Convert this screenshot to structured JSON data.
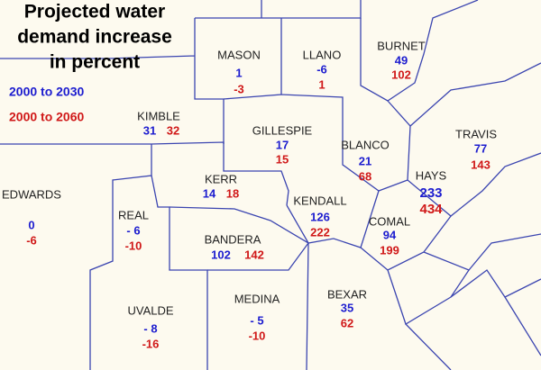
{
  "title": [
    "Projected water",
    "demand increase",
    "in percent"
  ],
  "legend": [
    {
      "label": "2000 to 2030",
      "color": "#1c1ccf"
    },
    {
      "label": "2000 to 2060",
      "color": "#d01818"
    }
  ],
  "counties": [
    {
      "name": "MASON",
      "v2030": 1,
      "v2060": -3
    },
    {
      "name": "LLANO",
      "v2030": -6,
      "v2060": 1
    },
    {
      "name": "BURNET",
      "v2030": 49,
      "v2060": 102
    },
    {
      "name": "KIMBLE",
      "v2030": 31,
      "v2060": 32
    },
    {
      "name": "GILLESPIE",
      "v2030": 17,
      "v2060": 15
    },
    {
      "name": "BLANCO",
      "v2030": 21,
      "v2060": 68
    },
    {
      "name": "TRAVIS",
      "v2030": 77,
      "v2060": 143
    },
    {
      "name": "HAYS",
      "v2030": 233,
      "v2060": 434
    },
    {
      "name": "EDWARDS",
      "v2030": 0,
      "v2060": -6
    },
    {
      "name": "REAL",
      "v2030": {
        "value": -6,
        "label": "- 6"
      },
      "v2060": -10
    },
    {
      "name": "KERR",
      "v2030": 14,
      "v2060": 18
    },
    {
      "name": "KENDALL",
      "v2030": 126,
      "v2060": 222
    },
    {
      "name": "COMAL",
      "v2030": 94,
      "v2060": 199
    },
    {
      "name": "BANDERA",
      "v2030": 102,
      "v2060": 142
    },
    {
      "name": "UVALDE",
      "v2030": {
        "value": -8,
        "label": "- 8"
      },
      "v2060": -16
    },
    {
      "name": "MEDINA",
      "v2030": {
        "value": -5,
        "label": "- 5"
      },
      "v2060": -10
    },
    {
      "name": "BEXAR",
      "v2030": 35,
      "v2060": 62
    }
  ]
}
